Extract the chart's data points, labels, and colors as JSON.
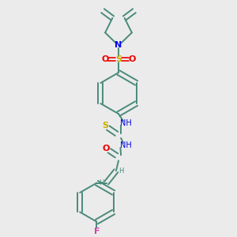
{
  "bg_color": "#ebebeb",
  "bond_color": "#4a8a7a",
  "N_color": "#0000ee",
  "O_color": "#ee0000",
  "S_color": "#ccaa00",
  "F_color": "#cc44aa",
  "H_color": "#4a8a7a",
  "line_width": 1.4,
  "figsize": [
    3.0,
    3.0
  ],
  "dpi": 100,
  "xlim": [
    0.1,
    0.9
  ],
  "ylim": [
    0.02,
    0.98
  ]
}
